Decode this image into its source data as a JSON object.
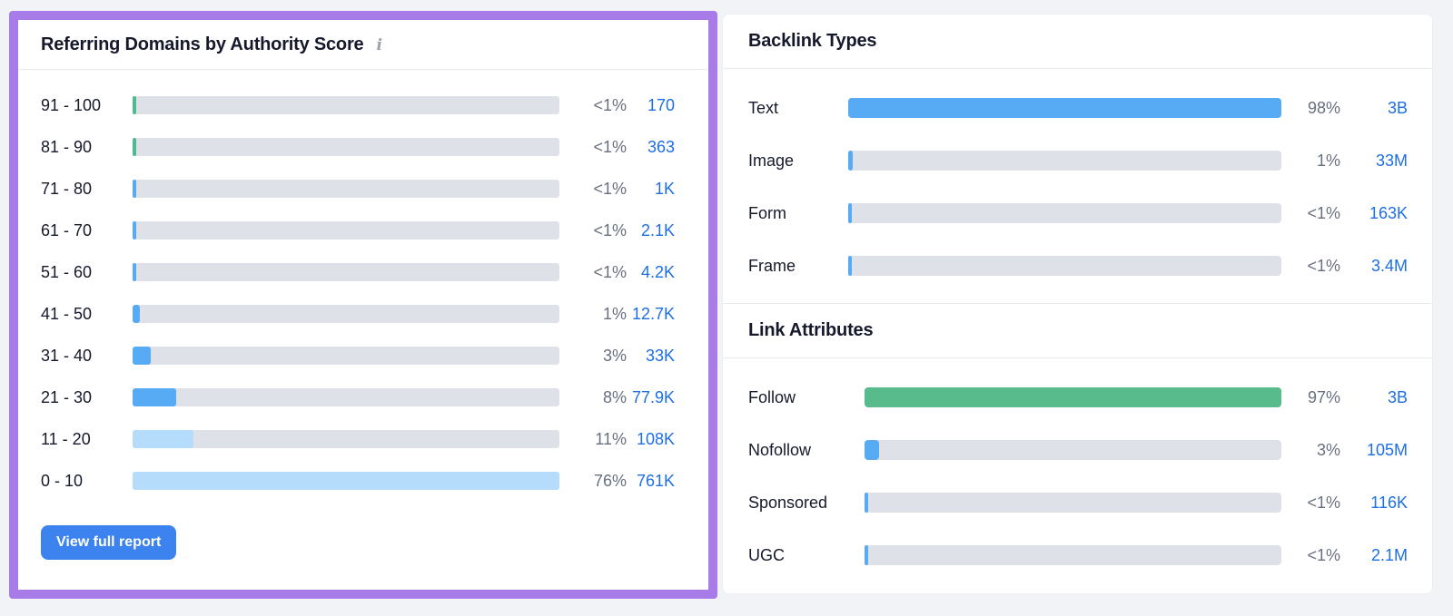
{
  "colors": {
    "page_bg": "#F1F3F6",
    "highlight_border": "#A87CE8",
    "track": "#DFE1E8",
    "bar_blue": "#57ABF5",
    "bar_light_blue": "#B5DCFA",
    "bar_green": "#4EBA8F",
    "bar_green_follow": "#57BB8C",
    "link": "#1D6FE3",
    "pct_text": "#68707F",
    "title_text": "#15192B",
    "button_bg": "#3C83F0"
  },
  "referring_domains": {
    "title": "Referring Domains by Authority Score",
    "info_icon": "i",
    "button_label": "View full report",
    "rows": [
      {
        "label": "91 - 100",
        "pct": "<1%",
        "value": "170",
        "fill": 0.9,
        "color": "bar_green"
      },
      {
        "label": "81 - 90",
        "pct": "<1%",
        "value": "363",
        "fill": 0.9,
        "color": "bar_green"
      },
      {
        "label": "71 - 80",
        "pct": "<1%",
        "value": "1K",
        "fill": 0.9,
        "color": "bar_blue"
      },
      {
        "label": "61 - 70",
        "pct": "<1%",
        "value": "2.1K",
        "fill": 0.9,
        "color": "bar_blue"
      },
      {
        "label": "51 - 60",
        "pct": "<1%",
        "value": "4.2K",
        "fill": 0.9,
        "color": "bar_blue"
      },
      {
        "label": "41 - 50",
        "pct": "1%",
        "value": "12.7K",
        "fill": 1.7,
        "color": "bar_blue"
      },
      {
        "label": "31 - 40",
        "pct": "3%",
        "value": "33K",
        "fill": 4.3,
        "color": "bar_blue"
      },
      {
        "label": "21 - 30",
        "pct": "8%",
        "value": "77.9K",
        "fill": 10.2,
        "color": "bar_blue"
      },
      {
        "label": "11 - 20",
        "pct": "11%",
        "value": "108K",
        "fill": 14.2,
        "color": "bar_light_blue"
      },
      {
        "label": "0 - 10",
        "pct": "76%",
        "value": "761K",
        "fill": 100,
        "color": "bar_light_blue"
      }
    ]
  },
  "backlink_types": {
    "title": "Backlink Types",
    "rows": [
      {
        "label": "Text",
        "pct": "98%",
        "value": "3B",
        "fill": 100,
        "color": "bar_blue"
      },
      {
        "label": "Image",
        "pct": "1%",
        "value": "33M",
        "fill": 1.1,
        "color": "bar_blue"
      },
      {
        "label": "Form",
        "pct": "<1%",
        "value": "163K",
        "fill": 0.9,
        "color": "bar_blue"
      },
      {
        "label": "Frame",
        "pct": "<1%",
        "value": "3.4M",
        "fill": 0.9,
        "color": "bar_blue"
      }
    ]
  },
  "link_attributes": {
    "title": "Link Attributes",
    "rows": [
      {
        "label": "Follow",
        "pct": "97%",
        "value": "3B",
        "fill": 100,
        "color": "bar_green_follow"
      },
      {
        "label": "Nofollow",
        "pct": "3%",
        "value": "105M",
        "fill": 3.5,
        "color": "bar_blue"
      },
      {
        "label": "Sponsored",
        "pct": "<1%",
        "value": "116K",
        "fill": 0.9,
        "color": "bar_blue"
      },
      {
        "label": "UGC",
        "pct": "<1%",
        "value": "2.1M",
        "fill": 0.9,
        "color": "bar_blue"
      }
    ]
  }
}
